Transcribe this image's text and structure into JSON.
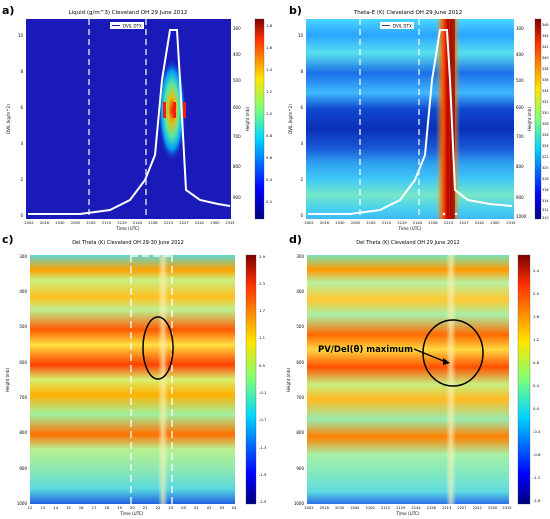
{
  "panels": [
    {
      "letter": "a)",
      "title": "Liquid (g/m^3) Cleveland OH 29 June 2012",
      "xlabel": "Time (UTC)",
      "ylabel_left": "DVIL (kg/m^2)",
      "ylabel_right": "Height (mb)",
      "legend": "DVIL DTX",
      "xticks": [
        "2002",
        "2016",
        "2030",
        "2045",
        "2100",
        "2115",
        "2129",
        "2144",
        "2158",
        "2213",
        "2227",
        "2242",
        "2300",
        "2315"
      ],
      "yticks_left": [
        "10",
        "8",
        "6",
        "4",
        "2",
        "0"
      ],
      "yticks_right": [
        "300",
        "400",
        "500",
        "600",
        "700",
        "800",
        "900"
      ],
      "cbar_ticks": [
        "1.8",
        "1.6",
        "1.4",
        "1.2",
        "1.0",
        "0.8",
        "0.6",
        "0.4",
        "0.2"
      ]
    },
    {
      "letter": "b)",
      "title": "Theta-E (K) Cleveland OH 29 June 2012",
      "xlabel": "Time (UTC)",
      "ylabel_left": "DVIL (kg/m^2)",
      "ylabel_right": "Height (mb)",
      "legend": "DVIL DTX",
      "xticks": [
        "2002",
        "2016",
        "2030",
        "2045",
        "2100",
        "2115",
        "2129",
        "2144",
        "2158",
        "2213",
        "2227",
        "2242",
        "2300",
        "2315"
      ],
      "yticks_left": [
        "10",
        "8",
        "6",
        "4",
        "2",
        "0"
      ],
      "yticks_right": [
        "300",
        "400",
        "500",
        "600",
        "700",
        "800",
        "900",
        "1000"
      ],
      "cbar_ticks": [
        "346",
        "344",
        "342",
        "340",
        "338",
        "336",
        "334",
        "332",
        "330",
        "328",
        "326",
        "324",
        "322",
        "320",
        "318",
        "316",
        "314",
        "312",
        "310"
      ]
    },
    {
      "letter": "c)",
      "title": "Del Theta (K) Cleveland OH 29-30 June 2012",
      "xlabel": "Time (UTC)",
      "ylabel_left": "Height (mb)",
      "xticks": [
        "12",
        "13",
        "14",
        "15",
        "16",
        "17",
        "18",
        "19",
        "20",
        "21",
        "22",
        "23",
        "00",
        "01",
        "02",
        "03",
        "04"
      ],
      "yticks_left": [
        "300",
        "400",
        "500",
        "600",
        "700",
        "800",
        "900",
        "1000"
      ],
      "cbar_ticks": [
        "2.9",
        "2.3",
        "1.7",
        "1.1",
        "0.5",
        "-0.1",
        "-0.7",
        "-1.3",
        "-1.9",
        "-2.5"
      ]
    },
    {
      "letter": "d)",
      "title": "Del Theta (K) Cleveland OH 29 June 2012",
      "xlabel": "Time (UTC)",
      "ylabel_left": "Height (mb)",
      "annotation": "PV/Del(θ) maximum",
      "xticks": [
        "2002",
        "2016",
        "2030",
        "2045",
        "2100",
        "2115",
        "2129",
        "2144",
        "2158",
        "2213",
        "2227",
        "2242",
        "2300",
        "2315"
      ],
      "yticks_left": [
        "300",
        "400",
        "500",
        "600",
        "700",
        "800",
        "900",
        "1000"
      ],
      "cbar_ticks": [
        "2.4",
        "2.0",
        "1.6",
        "1.2",
        "0.8",
        "0.4",
        "0.0",
        "-0.4",
        "-0.8",
        "-1.2",
        "-1.6"
      ]
    }
  ],
  "colors": {
    "panel_a_background": "#1a1ab8",
    "dvil_line": "#ffffff",
    "annotation": "#000000"
  }
}
